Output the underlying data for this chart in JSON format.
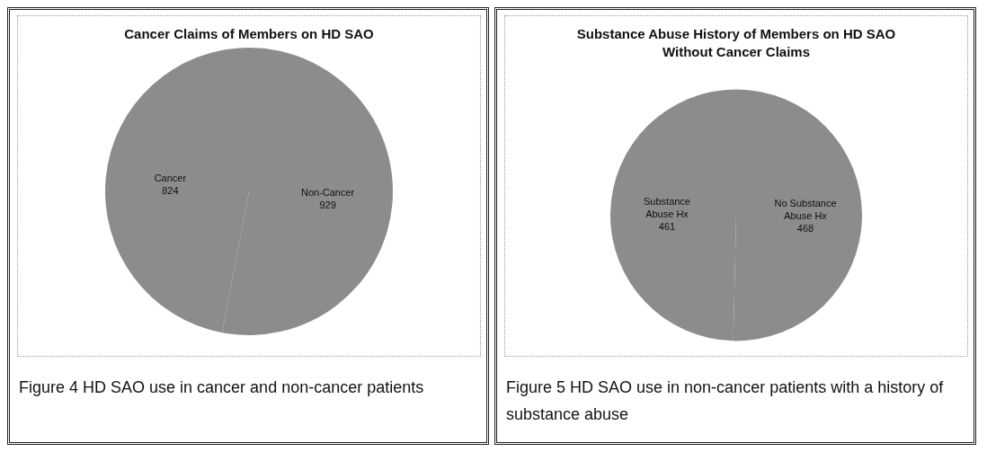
{
  "chart_data": [
    {
      "type": "pie",
      "title": "Cancer Claims of Members on HD SAO",
      "categories": [
        "Cancer",
        "Non-Cancer"
      ],
      "values": [
        824,
        929
      ],
      "colors": [
        "#8c8c8c",
        "#8c8c8c"
      ],
      "data_labels": true,
      "legend": false,
      "annotations": [
        "Figure 4  HD SAO use in cancer and non-cancer patients"
      ]
    },
    {
      "type": "pie",
      "title": "Substance Abuse History of Members on HD SAO Without Cancer Claims",
      "categories": [
        "Substance Abuse Hx",
        "No Substance Abuse Hx"
      ],
      "values": [
        461,
        468
      ],
      "colors": [
        "#8c8c8c",
        "#8c8c8c"
      ],
      "data_labels": true,
      "legend": false,
      "annotations": [
        "Figure 5 HD SAO use in non-cancer patients with a history of substance abuse"
      ]
    }
  ]
}
